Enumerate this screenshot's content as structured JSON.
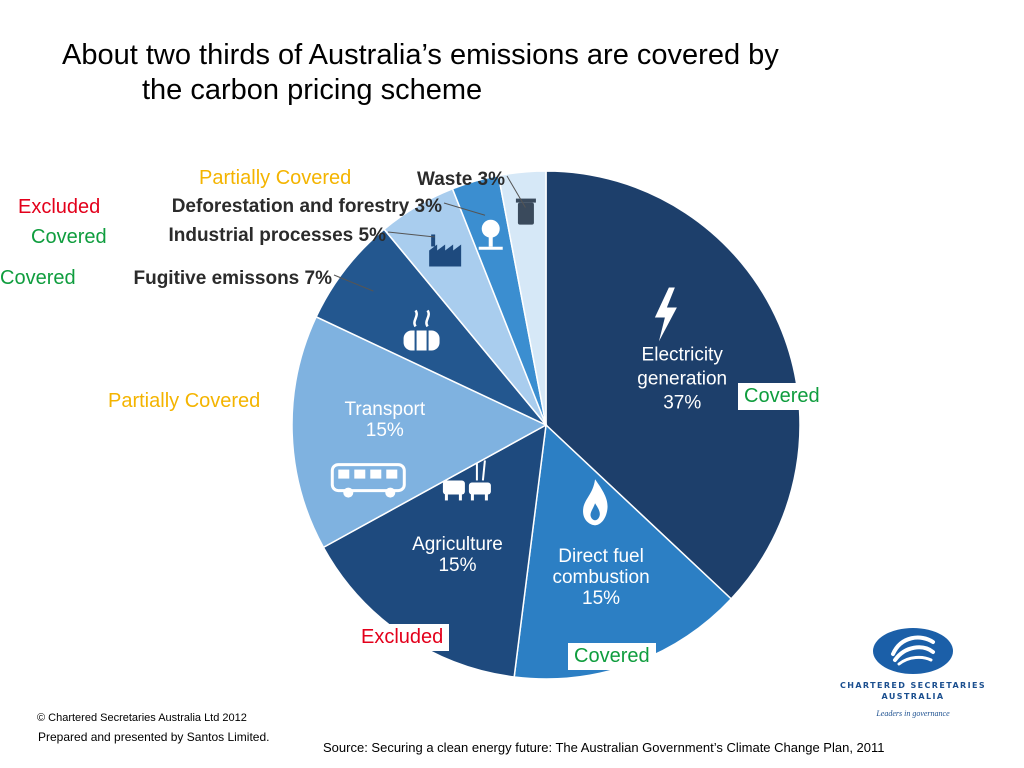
{
  "title_lines": [
    "About two thirds of Australia’s emissions are covered by",
    "the carbon pricing scheme"
  ],
  "colors": {
    "covered": "#0f9d3e",
    "partially_covered": "#f4b400",
    "excluded": "#e3001b",
    "slice_text": "#ffffff",
    "outer_label_text": "#2b2b2b"
  },
  "chart_data": {
    "type": "pie",
    "title": "",
    "unit": "%",
    "slices": [
      {
        "label": "Electricity generation",
        "label_lines": [
          "Electricity",
          "generation",
          "37%"
        ],
        "value": 37,
        "color": "#1d3f6b",
        "icon": "lightning-icon",
        "coverage": "Covered"
      },
      {
        "label": "Direct fuel combustion",
        "label_lines": [
          "Direct fuel",
          "combustion",
          "15%"
        ],
        "value": 15,
        "color": "#2c7fc4",
        "icon": "flame-icon",
        "coverage": "Covered"
      },
      {
        "label": "Agriculture",
        "label_lines": [
          "Agriculture",
          "15%"
        ],
        "value": 15,
        "color": "#1e4a7e",
        "icon": "livestock-icon",
        "coverage": "Excluded"
      },
      {
        "label": "Transport",
        "label_lines": [
          "Transport",
          "15%"
        ],
        "value": 15,
        "color": "#7fb2e0",
        "icon": "bus-icon",
        "coverage": "Partially Covered"
      },
      {
        "label": "Fugitive emissons",
        "outer_label": "Fugitive emissons 7%",
        "value": 7,
        "color": "#23578f",
        "icon": "barrel-icon",
        "coverage": "Covered"
      },
      {
        "label": "Industrial processes",
        "outer_label": "Industrial processes 5%",
        "value": 5,
        "color": "#a9cdee",
        "icon": "factory-icon",
        "coverage": "Covered"
      },
      {
        "label": "Deforestation and forestry",
        "outer_label": "Deforestation and forestry 3%",
        "value": 3,
        "color": "#3b8ed0",
        "icon": "tree-icon",
        "coverage": "Excluded"
      },
      {
        "label": "Waste",
        "outer_label": "Waste 3%",
        "value": 3,
        "color": "#d6e8f7",
        "icon": "bin-icon",
        "coverage": "Partially Covered"
      }
    ]
  },
  "coverage_labels": {
    "waste": "Partially Covered",
    "deforestation": "Excluded",
    "industrial": "Covered",
    "fugitive": "Covered",
    "transport": "Partially Covered",
    "electricity": "Covered",
    "agriculture": "Excluded",
    "direct_fuel": "Covered"
  },
  "footer": {
    "copyright": "© Chartered Secretaries Australia Ltd 2012",
    "prepared": "Prepared and presented by Santos Limited.",
    "source": "Source: Securing a clean energy future: The Australian Government’s Climate Change Plan, 2011"
  },
  "logo": {
    "name_line1": "CHARTERED SECRETARIES",
    "name_line2": "AUSTRALIA",
    "tagline": "Leaders in governance"
  }
}
